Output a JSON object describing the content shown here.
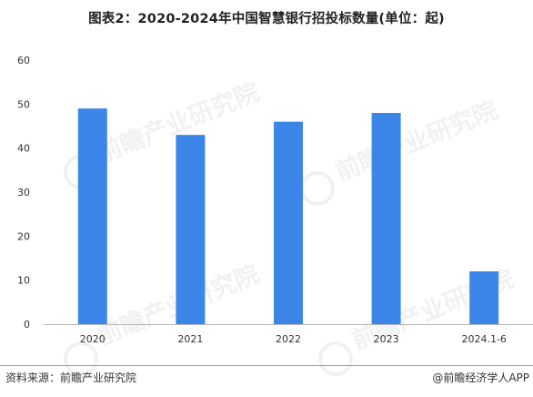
{
  "header": {
    "title": "图表2：2020-2024年中国智慧银行招投标数量(单位：起)"
  },
  "chart_data": {
    "type": "bar",
    "title": "图表2：2020-2024年中国智慧银行招投标数量(单位：起)",
    "categories": [
      "2020",
      "2021",
      "2022",
      "2023",
      "2024.1-6"
    ],
    "values": [
      49,
      43,
      46,
      48,
      12
    ],
    "ylim": [
      0,
      60
    ],
    "yticks": [
      0,
      10,
      20,
      30,
      40,
      50,
      60
    ],
    "xlabel": "",
    "ylabel": "",
    "grid": false,
    "legend": "none",
    "bar_color": "#3b86e8"
  },
  "watermark": {
    "text": "前瞻产业研究院"
  },
  "footer": {
    "source": "资料来源：前瞻产业研究院",
    "credit": "@前瞻经济学人APP"
  }
}
